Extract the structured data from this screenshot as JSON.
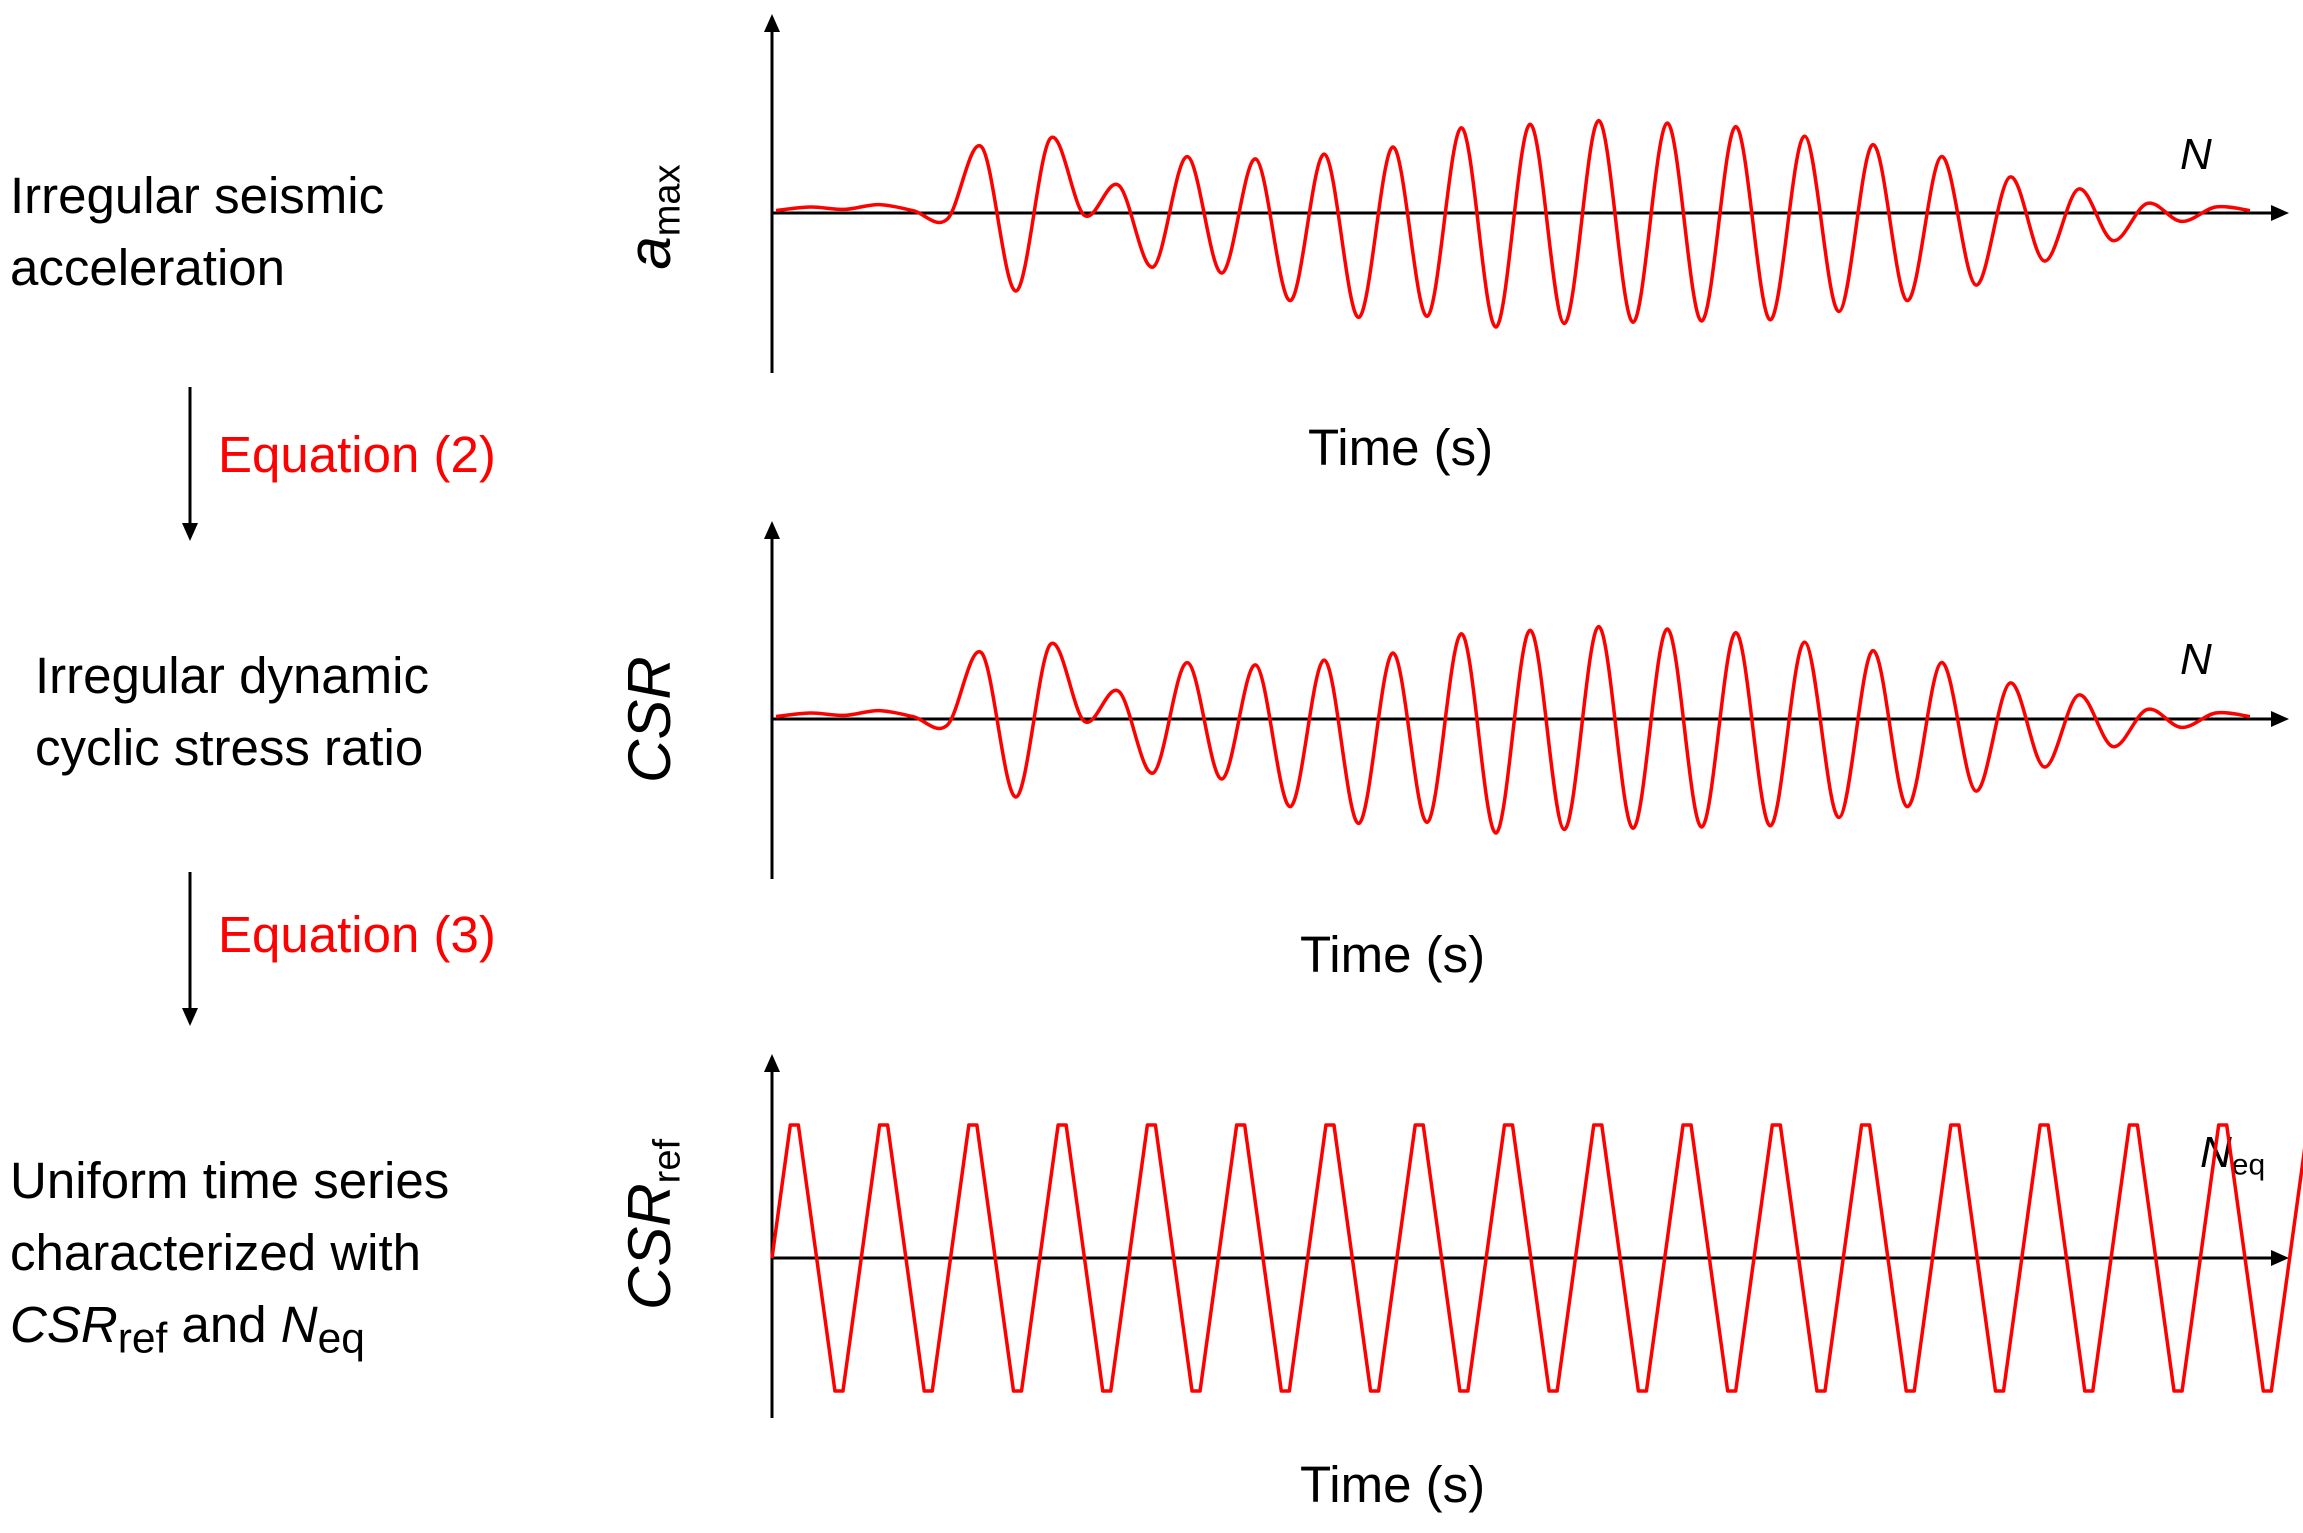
{
  "steps": [
    {
      "line1": "Irregular seismic",
      "line2": "acceleration"
    },
    {
      "line1": "Irregular dynamic",
      "line2": "cyclic stress ratio"
    },
    {
      "line1": "Uniform time series",
      "line2": "characterized with",
      "line3_csr": "CSR",
      "line3_ref": "ref",
      "line3_and": " and ",
      "line3_n": "N",
      "line3_eq": "eq"
    }
  ],
  "transitions": [
    {
      "label": "Equation (2)"
    },
    {
      "label": "Equation (3)"
    }
  ],
  "plots": [
    {
      "ylabel_main": "a",
      "ylabel_sub": "max",
      "xlabel": "Time (s)",
      "n_label": "N",
      "n_sub": ""
    },
    {
      "ylabel_main": "CSR",
      "ylabel_sub": "",
      "xlabel": "Time (s)",
      "n_label": "N",
      "n_sub": ""
    },
    {
      "ylabel_main": "CSR",
      "ylabel_sub": "ref",
      "xlabel": "Time (s)",
      "n_label": "N",
      "n_sub": "eq"
    }
  ],
  "colors": {
    "signal": "#ff0000",
    "axis": "#000000",
    "equation": "#ff0000"
  },
  "chart_data": [
    {
      "type": "line",
      "title": "",
      "xlabel": "Time (s)",
      "ylabel": "a_max",
      "series": [
        {
          "values": [
            0.02,
            0.05,
            0.03,
            0.07,
            0.02,
            -0.05,
            0.55,
            -0.65,
            0.62,
            -0.02,
            0.23,
            -0.45,
            0.47,
            -0.5,
            0.45,
            -0.73,
            0.49,
            -0.87,
            0.55,
            -0.86,
            0.71,
            -0.95,
            0.74,
            -0.92,
            0.77,
            -0.91,
            0.75,
            -0.9,
            0.72,
            -0.89,
            0.64,
            -0.82,
            0.57,
            -0.73,
            0.47,
            -0.6,
            0.3,
            -0.4,
            0.2,
            -0.23,
            0.08,
            -0.07,
            0.05,
            0.02
          ]
        }
      ]
    },
    {
      "type": "line",
      "title": "",
      "xlabel": "Time (s)",
      "ylabel": "CSR",
      "series": [
        {
          "values": [
            0.02,
            0.05,
            0.03,
            0.07,
            0.02,
            -0.05,
            0.55,
            -0.65,
            0.62,
            -0.02,
            0.23,
            -0.45,
            0.47,
            -0.5,
            0.45,
            -0.73,
            0.49,
            -0.87,
            0.55,
            -0.86,
            0.71,
            -0.95,
            0.74,
            -0.92,
            0.77,
            -0.91,
            0.75,
            -0.9,
            0.72,
            -0.89,
            0.64,
            -0.82,
            0.57,
            -0.73,
            0.47,
            -0.6,
            0.3,
            -0.4,
            0.2,
            -0.23,
            0.08,
            -0.07,
            0.05,
            0.02
          ]
        }
      ]
    },
    {
      "type": "line",
      "title": "",
      "xlabel": "Time (s)",
      "ylabel": "CSR_ref",
      "uniform": {
        "cycles": 16.5,
        "amplitude": 1
      }
    }
  ]
}
